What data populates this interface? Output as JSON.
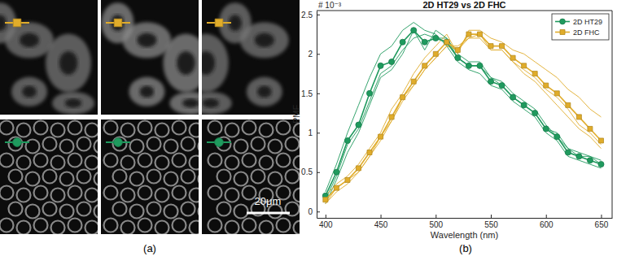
{
  "chart_data": {
    "type": "line",
    "title": "2D HT29 vs 2D FHC",
    "x_label": "Wavelength (nm)",
    "y_label": "PMF",
    "y_multiplier": "# 10⁻³",
    "x": [
      400,
      410,
      420,
      430,
      440,
      450,
      460,
      470,
      480,
      490,
      500,
      510,
      520,
      530,
      540,
      550,
      560,
      570,
      580,
      590,
      600,
      610,
      620,
      630,
      640,
      650
    ],
    "series": [
      {
        "name": "2D HT29",
        "color": "#1f9a5e",
        "marker": "circle",
        "line_style": "solid",
        "values": [
          0.2,
          0.5,
          0.9,
          1.1,
          1.5,
          1.85,
          1.9,
          2.15,
          2.3,
          2.15,
          2.2,
          2.15,
          1.95,
          1.85,
          1.85,
          1.65,
          1.6,
          1.45,
          1.35,
          1.25,
          1.05,
          0.95,
          0.75,
          0.7,
          0.65,
          0.6
        ]
      },
      {
        "name": "2D FHC",
        "color": "#e0ac2a",
        "marker": "square",
        "line_style": "solid",
        "values": [
          0.15,
          0.3,
          0.4,
          0.55,
          0.75,
          0.95,
          1.2,
          1.45,
          1.65,
          1.85,
          2.0,
          2.15,
          2.05,
          2.25,
          2.25,
          2.1,
          2.1,
          1.95,
          1.85,
          1.75,
          1.6,
          1.5,
          1.35,
          1.2,
          1.05,
          0.9
        ]
      },
      {
        "color": "#1f9a5e",
        "marker": "none",
        "line_style": "solid",
        "values": [
          0.25,
          0.6,
          1.0,
          1.35,
          1.7,
          2.0,
          2.1,
          2.3,
          2.4,
          2.3,
          2.25,
          2.1,
          1.9,
          1.8,
          1.75,
          1.6,
          1.55,
          1.4,
          1.3,
          1.2,
          1.0,
          0.9,
          0.7,
          0.65,
          0.6,
          0.55
        ]
      },
      {
        "color": "#1f9a5e",
        "marker": "none",
        "line_style": "solid",
        "values": [
          0.15,
          0.45,
          0.85,
          1.05,
          1.4,
          1.75,
          1.85,
          2.05,
          2.2,
          2.25,
          2.2,
          2.2,
          2.0,
          1.9,
          1.9,
          1.7,
          1.65,
          1.5,
          1.4,
          1.3,
          1.1,
          0.95,
          0.8,
          0.7,
          0.7,
          0.65
        ]
      },
      {
        "color": "#1f9a5e",
        "marker": "none",
        "line_style": "solid",
        "values": [
          0.1,
          0.4,
          0.75,
          1.0,
          1.35,
          1.7,
          1.8,
          2.0,
          2.3,
          2.05,
          2.3,
          2.2,
          1.95,
          1.85,
          1.85,
          1.7,
          1.6,
          1.45,
          1.35,
          1.25,
          1.05,
          1.0,
          0.8,
          0.75,
          0.7,
          0.6
        ]
      },
      {
        "color": "#e0ac2a",
        "marker": "none",
        "line_style": "solid",
        "values": [
          0.2,
          0.35,
          0.45,
          0.6,
          0.8,
          1.0,
          1.3,
          1.5,
          1.75,
          1.95,
          2.1,
          2.25,
          2.0,
          2.3,
          2.3,
          2.2,
          2.15,
          2.05,
          2.0,
          1.9,
          1.8,
          1.7,
          1.55,
          1.45,
          1.3,
          1.2
        ]
      },
      {
        "color": "#e0ac2a",
        "marker": "none",
        "line_style": "solid",
        "values": [
          0.1,
          0.3,
          0.4,
          0.5,
          0.7,
          0.9,
          1.15,
          1.4,
          1.6,
          1.8,
          1.95,
          2.1,
          2.05,
          2.2,
          2.2,
          2.05,
          2.05,
          1.9,
          1.8,
          1.7,
          1.55,
          1.45,
          1.3,
          1.1,
          1.0,
          0.85
        ]
      },
      {
        "color": "#e0ac2a",
        "marker": "none",
        "line_style": "solid",
        "values": [
          0.1,
          0.25,
          0.35,
          0.5,
          0.7,
          0.95,
          1.15,
          1.45,
          1.6,
          1.8,
          1.95,
          2.1,
          2.1,
          2.2,
          2.25,
          2.05,
          2.05,
          1.9,
          1.75,
          1.65,
          1.5,
          1.35,
          1.2,
          1.05,
          0.95,
          0.8
        ]
      }
    ],
    "xlim": [
      392,
      660
    ],
    "xticks": [
      400,
      450,
      500,
      550,
      600,
      650
    ],
    "ylim": [
      -0.08,
      2.55
    ],
    "yticks": [
      0,
      0.5,
      1,
      1.5,
      2,
      2.5
    ],
    "grid": false,
    "legend": "northeast"
  },
  "figure": {
    "panel_labels": [
      "(a)",
      "(b)"
    ],
    "scale_bar_label": "20μm"
  }
}
